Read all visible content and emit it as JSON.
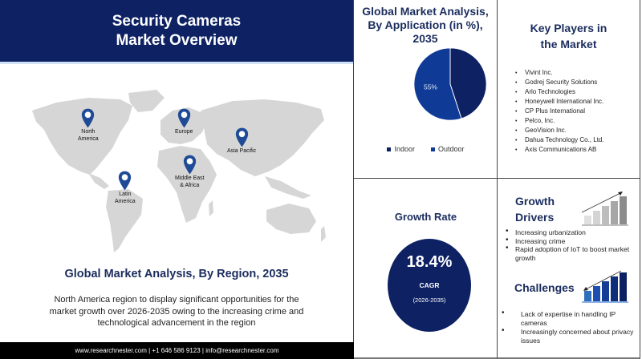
{
  "header": {
    "title_line1": "Security Cameras",
    "title_line2": "Market Overview"
  },
  "map": {
    "regions": [
      {
        "line1": "North",
        "line2": "America"
      },
      {
        "line1": "Europe",
        "line2": ""
      },
      {
        "line1": "Asia Pacific",
        "line2": ""
      },
      {
        "line1": "Middle East",
        "line2": "& Africa"
      },
      {
        "line1": "Latin",
        "line2": "America"
      }
    ],
    "pin_color": "#1e4a96"
  },
  "region_section": {
    "title": "Global Market Analysis, By Region, 2035",
    "description": "North America region to display significant opportunities for the market growth over 2026-2035 owing to the increasing crime and technological advancement in the region"
  },
  "footer": {
    "text": "www.researchnester.com | +1 646 586 9123 | info@researchnester.com"
  },
  "application_chart": {
    "title_line1": "Global Market Analysis,",
    "title_line2": "By Application (in %),",
    "title_line3": "2035",
    "legend": [
      "Indoor",
      "Outdoor"
    ]
  },
  "chart_data": {
    "type": "pie",
    "title": "Global Market Analysis, By Application (in %), 2035",
    "categories": [
      "Indoor",
      "Outdoor"
    ],
    "values": [
      45,
      55
    ],
    "labels": [
      "",
      "55%"
    ],
    "colors": [
      "#0d2163",
      "#0f3b97"
    ],
    "legend_position": "bottom"
  },
  "key_players": {
    "title_line1": "Key Players in",
    "title_line2": "the Market",
    "items": [
      "Vivint Inc.",
      "Godrej Security Solutions",
      "Arlo Technologies",
      "Honeywell International Inc.",
      "CP Plus International",
      "Pelco, Inc.",
      "GeoVision Inc.",
      "Dahua Technology Co., Ltd.",
      "Axis Communications AB"
    ]
  },
  "growth_rate": {
    "title": "Growth Rate",
    "value": "18.4%",
    "label": "CAGR",
    "period": "(2026-2035)"
  },
  "growth_drivers": {
    "title_line1": "Growth",
    "title_line2": "Drivers",
    "items": [
      "Increasing urbanization",
      "Increasing crime",
      "Rapid adoption of IoT to boost market growth"
    ]
  },
  "challenges": {
    "title": "Challenges",
    "items": [
      "Lack of expertise in handling IP cameras",
      "Increasingly concerned about privacy issues"
    ]
  },
  "colors": {
    "navy": "#0d2163",
    "title_text": "#1b2d5e",
    "map_gray": "#d3d3d3"
  }
}
